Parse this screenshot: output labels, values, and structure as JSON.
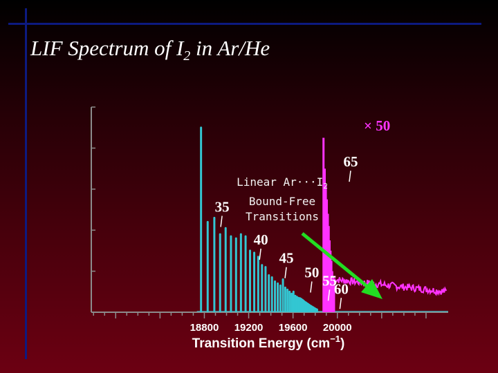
{
  "slide": {
    "title_main": "LIF Spectrum of I",
    "title_sub": "2",
    "title_tail": " in Ar/He"
  },
  "annotation": {
    "line1_main": "Linear Ar···I",
    "line1_sub": "2",
    "line2": "Bound-Free",
    "line3": "Transitions"
  },
  "chart_data": {
    "type": "line",
    "xlabel": "Transition Energy (cm",
    "xlabel_sup": "−1",
    "xlabel_tail": ")",
    "xlim": [
      17780,
      21000
    ],
    "x_ticks": [
      18800,
      19200,
      19600,
      20000
    ],
    "ylim": [
      0,
      1
    ],
    "grid": false,
    "colors": {
      "main": "#33c6d2",
      "scaled": "#ff33ff",
      "arrow": "#22dd22",
      "axis": "#8c8c8c",
      "text": "#ffffff"
    },
    "scale_label": "× 50",
    "series": [
      {
        "peaks": [
          [
            18770,
            0.9
          ],
          [
            18830,
            0.44
          ],
          [
            18890,
            0.46
          ],
          [
            18942,
            0.38
          ],
          [
            18992,
            0.41
          ],
          [
            19040,
            0.37
          ],
          [
            19086,
            0.36
          ],
          [
            19130,
            0.38
          ],
          [
            19172,
            0.37
          ],
          [
            19212,
            0.3
          ],
          [
            19250,
            0.29
          ],
          [
            19286,
            0.27
          ],
          [
            19320,
            0.23
          ],
          [
            19352,
            0.22
          ],
          [
            19382,
            0.18
          ],
          [
            19410,
            0.17
          ],
          [
            19437,
            0.15
          ],
          [
            19462,
            0.14
          ],
          [
            19486,
            0.13
          ],
          [
            19509,
            0.16
          ],
          [
            19530,
            0.12
          ],
          [
            19550,
            0.11
          ],
          [
            19569,
            0.1
          ],
          [
            19587,
            0.09
          ],
          [
            19604,
            0.1
          ],
          [
            19620,
            0.08
          ],
          [
            19635,
            0.075
          ],
          [
            19649,
            0.07
          ],
          [
            19662,
            0.068
          ],
          [
            19674,
            0.065
          ],
          [
            19686,
            0.06
          ],
          [
            19697,
            0.055
          ],
          [
            19707,
            0.05
          ],
          [
            19717,
            0.047
          ],
          [
            19727,
            0.043
          ],
          [
            19736,
            0.04
          ],
          [
            19745,
            0.036
          ],
          [
            19754,
            0.033
          ],
          [
            19763,
            0.03
          ],
          [
            19772,
            0.027
          ],
          [
            19781,
            0.024
          ],
          [
            19790,
            0.021
          ],
          [
            19799,
            0.018
          ],
          [
            19808,
            0.015
          ],
          [
            19817,
            0.013
          ]
        ]
      },
      {
        "name": "× 50",
        "start": 19860,
        "peaks": [
          [
            19875,
            0.85
          ],
          [
            19886,
            0.7
          ],
          [
            19896,
            0.62
          ],
          [
            19905,
            0.55
          ],
          [
            19914,
            0.48
          ],
          [
            19922,
            0.42
          ],
          [
            19930,
            0.35
          ],
          [
            19938,
            0.3
          ],
          [
            19946,
            0.25
          ],
          [
            19954,
            0.2
          ],
          [
            19962,
            0.17
          ],
          [
            19970,
            0.14
          ]
        ],
        "plateau": 0.16,
        "end_level": 0.1
      }
    ],
    "peak_labels": [
      {
        "text": "35",
        "x": 18960,
        "y": 0.49
      },
      {
        "text": "40",
        "x": 19310,
        "y": 0.33
      },
      {
        "text": "45",
        "x": 19540,
        "y": 0.24
      },
      {
        "text": "50",
        "x": 19770,
        "y": 0.17
      },
      {
        "text": "55",
        "x": 19930,
        "y": 0.13
      },
      {
        "text": "60",
        "x": 20035,
        "y": 0.09
      },
      {
        "text": "65",
        "x": 20120,
        "y": 0.71
      }
    ]
  }
}
